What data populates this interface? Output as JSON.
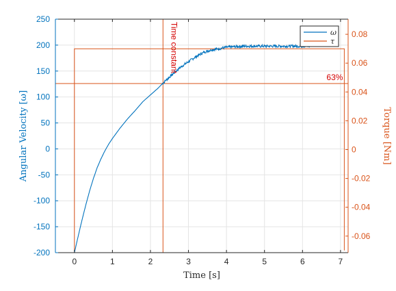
{
  "chart_data": {
    "type": "line",
    "title": "",
    "xlabel": "Time [s]",
    "ylabel_left": "Angular Velocity [ω]",
    "ylabel_right": "Torque [Nm]",
    "xlim": [
      -0.5,
      7.2
    ],
    "ylim_left": [
      -200,
      250
    ],
    "ylim_right": [
      -0.0715,
      0.0905
    ],
    "x_ticks": [
      0,
      1,
      2,
      3,
      4,
      5,
      6,
      7
    ],
    "y_left_ticks": [
      -200,
      -150,
      -100,
      -50,
      0,
      50,
      100,
      150,
      200,
      250
    ],
    "y_right_ticks": [
      -0.06,
      -0.04,
      -0.02,
      0,
      0.02,
      0.04,
      0.06,
      0.08
    ],
    "y_right_tick_labels": [
      "-0.06",
      "-0.04",
      "-0.02",
      "0",
      "0.02",
      "0.04",
      "0.06",
      "0.08"
    ],
    "grid": true,
    "legend_position": "top-right",
    "series": [
      {
        "name": "ω",
        "axis": "left",
        "color": "#0072BD",
        "x": [
          0,
          0.1,
          0.2,
          0.3,
          0.4,
          0.5,
          0.6,
          0.7,
          0.8,
          0.9,
          1.0,
          1.2,
          1.4,
          1.6,
          1.8,
          2.0,
          2.2,
          2.4,
          2.6,
          2.8,
          3.0,
          3.2,
          3.4,
          3.6,
          3.8,
          4.0,
          4.2,
          4.5,
          5.0,
          5.5,
          6.0,
          6.2
        ],
        "y": [
          -200,
          -168,
          -137,
          -108,
          -81,
          -57,
          -36,
          -19,
          -4,
          9,
          20,
          40,
          58,
          74,
          91,
          104,
          117,
          132,
          145,
          158,
          168,
          178,
          186,
          191,
          193,
          196,
          197,
          198,
          198,
          198,
          198,
          198
        ],
        "noisy_from": 2.3
      },
      {
        "name": "τ",
        "axis": "right",
        "color": "#D95319",
        "x": [
          0,
          0,
          7.1,
          7.1
        ],
        "y": [
          -0.07,
          0.07,
          0.07,
          -0.07
        ]
      }
    ],
    "reference_lines": [
      {
        "orientation": "vertical",
        "value": 2.33,
        "color": "#D95319",
        "axis": "x"
      },
      {
        "orientation": "horizontal",
        "value": 126,
        "color": "#D95319",
        "axis": "left"
      }
    ],
    "annotations": [
      {
        "text": "Time constant",
        "x": 2.33,
        "y": 245,
        "rotation": -90,
        "color": "#D40000"
      },
      {
        "text": "63%",
        "x": 7.1,
        "y": 126,
        "color": "#D40000"
      }
    ]
  }
}
